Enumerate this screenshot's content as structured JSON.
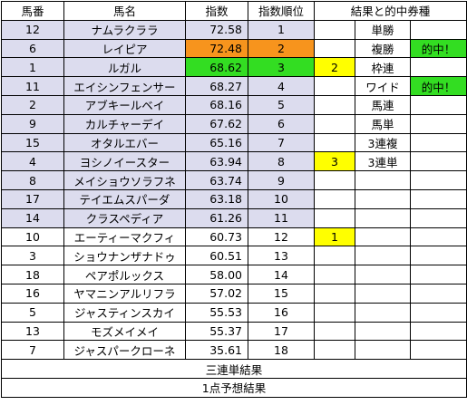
{
  "headers": {
    "umaban": "馬番",
    "name": "馬名",
    "index": "指数",
    "rank": "指数順位",
    "result": "結果と的中券種"
  },
  "rows": [
    {
      "umaban": "12",
      "name": "ナムラクララ",
      "index": "72.58",
      "rank": "1",
      "result": "",
      "ticket": "単勝",
      "hit": ""
    },
    {
      "umaban": "6",
      "name": "レイピア",
      "index": "72.48",
      "rank": "2",
      "result": "",
      "ticket": "複勝",
      "hit": "的中！"
    },
    {
      "umaban": "1",
      "name": "ルガル",
      "index": "68.62",
      "rank": "3",
      "result": "2",
      "ticket": "枠連",
      "hit": ""
    },
    {
      "umaban": "11",
      "name": "エイシンフェンサー",
      "index": "68.27",
      "rank": "4",
      "result": "",
      "ticket": "ワイド",
      "hit": "的中！"
    },
    {
      "umaban": "2",
      "name": "アブキールベイ",
      "index": "68.16",
      "rank": "5",
      "result": "",
      "ticket": "馬連",
      "hit": ""
    },
    {
      "umaban": "9",
      "name": "カルチャーデイ",
      "index": "67.62",
      "rank": "6",
      "result": "",
      "ticket": "馬単",
      "hit": ""
    },
    {
      "umaban": "15",
      "name": "オタルエバー",
      "index": "65.16",
      "rank": "7",
      "result": "",
      "ticket": "3連複",
      "hit": ""
    },
    {
      "umaban": "4",
      "name": "ヨシノイースター",
      "index": "63.94",
      "rank": "8",
      "result": "3",
      "ticket": "3連単",
      "hit": ""
    },
    {
      "umaban": "8",
      "name": "メイショウソラフネ",
      "index": "63.74",
      "rank": "9",
      "result": "",
      "ticket": "",
      "hit": ""
    },
    {
      "umaban": "17",
      "name": "テイエムスパーダ",
      "index": "63.18",
      "rank": "10",
      "result": "",
      "ticket": "",
      "hit": ""
    },
    {
      "umaban": "14",
      "name": "クラスペディア",
      "index": "61.26",
      "rank": "11",
      "result": "",
      "ticket": "",
      "hit": ""
    },
    {
      "umaban": "10",
      "name": "エーティーマクフィ",
      "index": "60.73",
      "rank": "12",
      "result": "1",
      "ticket": "",
      "hit": ""
    },
    {
      "umaban": "3",
      "name": "ショウナンザナドゥ",
      "index": "60.51",
      "rank": "13",
      "result": "",
      "ticket": "",
      "hit": ""
    },
    {
      "umaban": "18",
      "name": "ペアポルックス",
      "index": "58.00",
      "rank": "14",
      "result": "",
      "ticket": "",
      "hit": ""
    },
    {
      "umaban": "16",
      "name": "ヤマニンアルリフラ",
      "index": "57.02",
      "rank": "15",
      "result": "",
      "ticket": "",
      "hit": ""
    },
    {
      "umaban": "5",
      "name": "ジャスティンスカイ",
      "index": "55.53",
      "rank": "16",
      "result": "",
      "ticket": "",
      "hit": ""
    },
    {
      "umaban": "13",
      "name": "モズメイメイ",
      "index": "55.37",
      "rank": "17",
      "result": "",
      "ticket": "",
      "hit": ""
    },
    {
      "umaban": "7",
      "name": "ジャスパークローネ",
      "index": "35.61",
      "rank": "18",
      "result": "",
      "ticket": "",
      "hit": ""
    }
  ],
  "footer": {
    "trifecta_result": "三連単結果",
    "one_point_prediction": "1点予想結果"
  },
  "colors": {
    "lavender": "#dcdcee",
    "orange": "#f7941d",
    "green": "#33dd22",
    "yellow": "#ffff00"
  }
}
